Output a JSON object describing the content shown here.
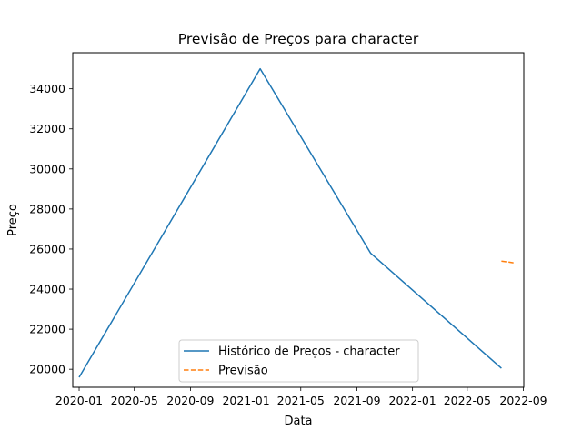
{
  "chart_data": {
    "type": "line",
    "title": "Previsão de Preços para character",
    "xlabel": "Data",
    "ylabel": "Preço",
    "xlim": [
      "2019-12-18",
      "2022-09-02"
    ],
    "ylim": [
      19100,
      35800
    ],
    "x_ticks": [
      "2020-01",
      "2020-05",
      "2020-09",
      "2021-01",
      "2021-05",
      "2021-09",
      "2022-01",
      "2022-05",
      "2022-09"
    ],
    "y_ticks": [
      20000,
      22000,
      24000,
      26000,
      28000,
      30000,
      32000,
      34000
    ],
    "grid": false,
    "legend_position": "bottom-center",
    "series": [
      {
        "name": "Histórico de Preços - character",
        "color": "#1f77b4",
        "style": "solid",
        "x": [
          "2020-01-01",
          "2021-02-01",
          "2021-10-01",
          "2022-07-15"
        ],
        "y": [
          19600,
          35000,
          25800,
          20050
        ]
      },
      {
        "name": "Previsão",
        "color": "#ff7f0e",
        "style": "dashed",
        "x": [
          "2022-07-15",
          "2022-08-15"
        ],
        "y": [
          25400,
          25300
        ]
      }
    ]
  }
}
